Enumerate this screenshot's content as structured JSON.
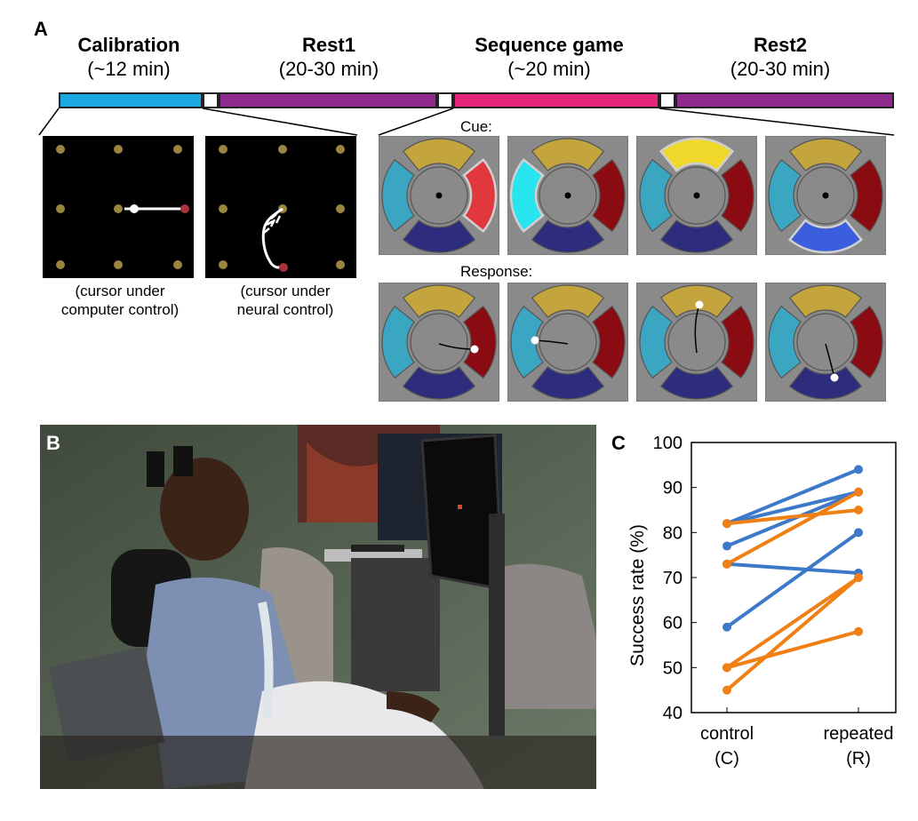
{
  "panel_a": {
    "letter": "A",
    "phases": [
      {
        "name": "Calibration",
        "duration": "(~12 min)",
        "color": "#1ba8e0"
      },
      {
        "name": "Rest1",
        "duration": "(20-30 min)",
        "color": "#8e2a8e"
      },
      {
        "name": "Sequence game",
        "duration": "(~20 min)",
        "color": "#e8237a"
      },
      {
        "name": "Rest2",
        "duration": "(20-30 min)",
        "color": "#8e2a8e"
      }
    ],
    "calibration_captions": [
      "(cursor under\ncomputer control)",
      "(cursor under\nneural control)"
    ],
    "cue_label": "Cue:",
    "response_label": "Response:",
    "game_colors": {
      "yellow": "#c4a43c",
      "yellow_lit": "#f0d82a",
      "red": "#8a0b12",
      "red_lit": "#e0383c",
      "cyan": "#3ba6c2",
      "cyan_lit": "#27e5ee",
      "blue": "#2e2c7c",
      "blue_lit": "#3b5fdc",
      "gray": "#8a8a8a"
    },
    "cue_lit": [
      "red",
      "cyan",
      "yellow",
      "blue"
    ],
    "response_targets": [
      "red",
      "cyan",
      "yellow",
      "blue"
    ]
  },
  "panel_b": {
    "letter": "B"
  },
  "panel_c": {
    "letter": "C",
    "chart_data": {
      "type": "line",
      "categories": [
        "control\n(C)",
        "repeated\n(R)"
      ],
      "ylabel": "Success rate (%)",
      "ylim": [
        40,
        100
      ],
      "yticks": [
        40,
        50,
        60,
        70,
        80,
        90,
        100
      ],
      "series": [
        {
          "name": "blue-1",
          "color": "#3c79c8",
          "values": [
            82,
            94
          ]
        },
        {
          "name": "blue-2",
          "color": "#3c79c8",
          "values": [
            82,
            89
          ]
        },
        {
          "name": "blue-3",
          "color": "#3c79c8",
          "values": [
            77,
            89
          ]
        },
        {
          "name": "blue-4",
          "color": "#3c79c8",
          "values": [
            73,
            71
          ]
        },
        {
          "name": "blue-5",
          "color": "#3c79c8",
          "values": [
            59,
            80
          ]
        },
        {
          "name": "orange-1",
          "color": "#f07f14",
          "values": [
            82,
            85
          ]
        },
        {
          "name": "orange-2",
          "color": "#f07f14",
          "values": [
            73,
            89
          ]
        },
        {
          "name": "orange-3",
          "color": "#f07f14",
          "values": [
            50,
            70
          ]
        },
        {
          "name": "orange-4",
          "color": "#f07f14",
          "values": [
            45,
            70
          ]
        },
        {
          "name": "orange-5",
          "color": "#f07f14",
          "values": [
            50,
            58
          ]
        }
      ]
    }
  }
}
